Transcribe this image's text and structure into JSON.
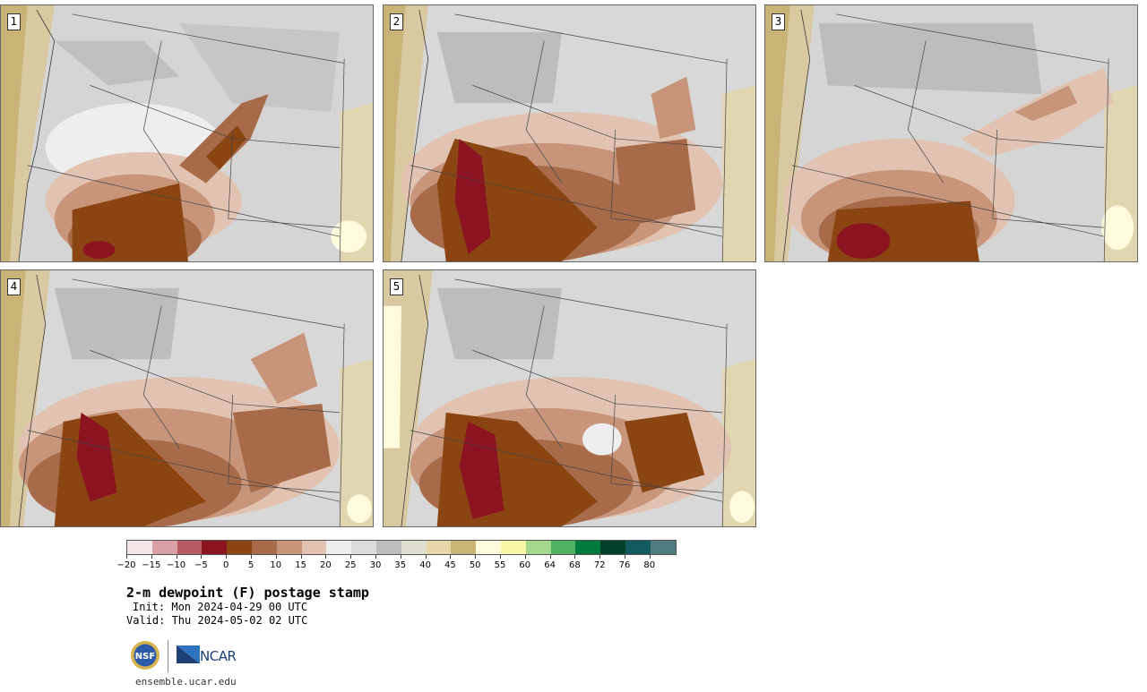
{
  "panels": [
    {
      "label": "1",
      "variant": "low-dewpoint-southwest"
    },
    {
      "label": "2",
      "variant": "dry-plains-spread"
    },
    {
      "label": "3",
      "variant": "northeast-band"
    },
    {
      "label": "4",
      "variant": "dry-plains-spread"
    },
    {
      "label": "5",
      "variant": "dry-plains-spread"
    }
  ],
  "colorbar": {
    "ticks": [
      "−20",
      "−15",
      "−10",
      "−5",
      "0",
      "5",
      "10",
      "15",
      "20",
      "25",
      "30",
      "35",
      "40",
      "45",
      "50",
      "55",
      "60",
      "64",
      "68",
      "72",
      "76",
      "80"
    ],
    "colors": [
      "#f4e6e6",
      "#d9a0a6",
      "#b85a62",
      "#8b1420",
      "#8b4513",
      "#a86b4a",
      "#c8957a",
      "#e2c2b0",
      "#eeeeee",
      "#dcdcdc",
      "#bdbdbd",
      "#e0dfcf",
      "#e6d6a8",
      "#c9b477",
      "#fefbdc",
      "#f8f6a8",
      "#a5d88c",
      "#4fb265",
      "#007a3d",
      "#00402a",
      "#135a5e",
      "#507c80"
    ]
  },
  "title": "2-m dewpoint (F) postage stamp",
  "init": "Init: Mon 2024-04-29 00 UTC",
  "valid": "Valid: Thu 2024-05-02 02 UTC",
  "logos": {
    "nsf": "NSF",
    "ncar": "NCAR"
  },
  "url": "ensemble.ucar.edu"
}
